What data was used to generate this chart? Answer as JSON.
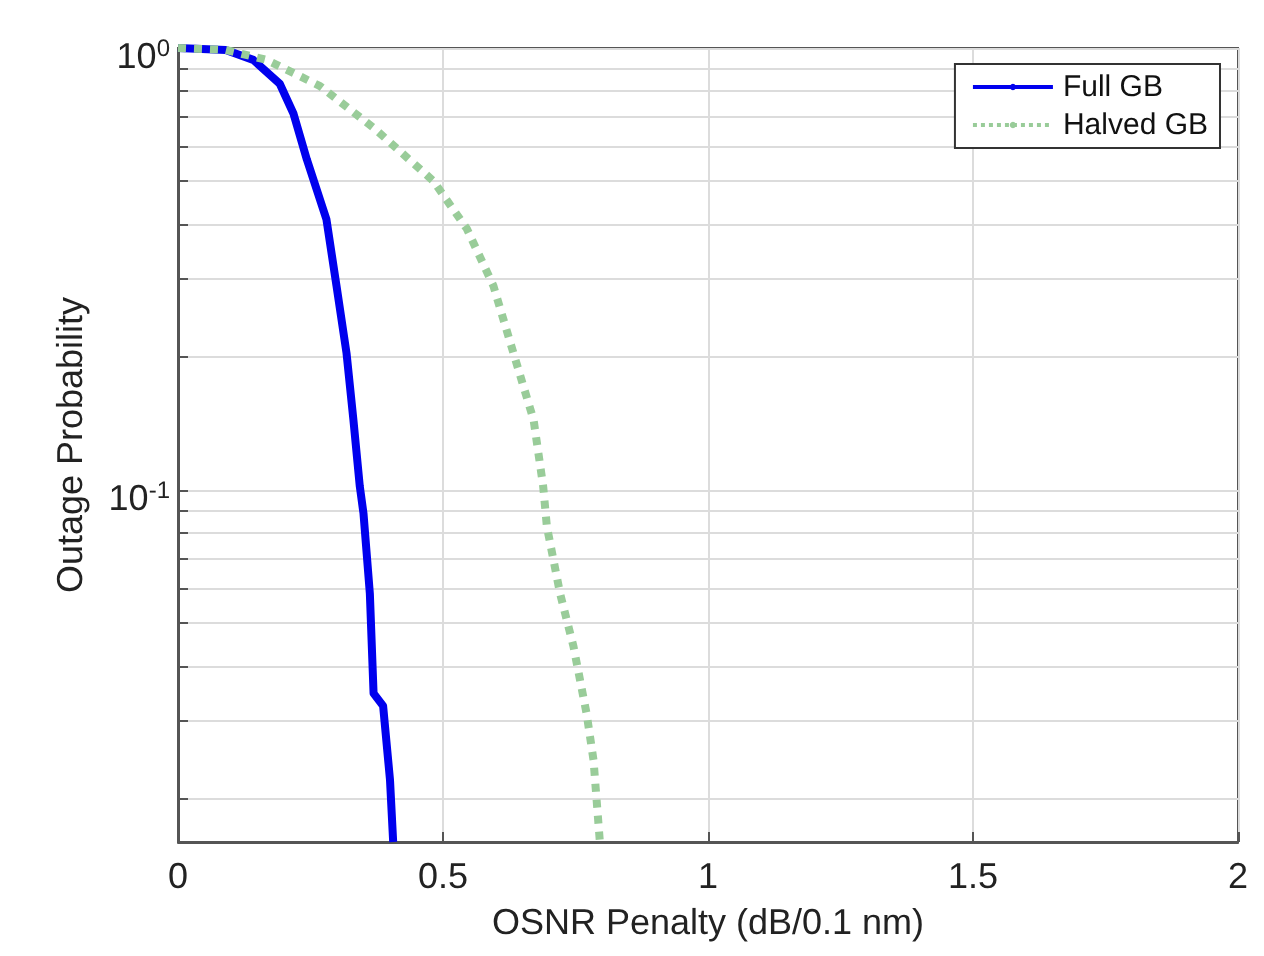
{
  "chart_data": {
    "type": "line",
    "xlabel": "OSNR Penalty (dB/0.1 nm)",
    "ylabel": "Outage Probability",
    "xlim": [
      0,
      2
    ],
    "xticks": [
      0,
      0.5,
      1,
      1.5,
      2
    ],
    "ylim": [
      0.016,
      1
    ],
    "log": true,
    "yticks": [
      {
        "value": 0.02,
        "label": null
      },
      {
        "value": 0.03,
        "label": null
      },
      {
        "value": 0.04,
        "label": null
      },
      {
        "value": 0.05,
        "label": null
      },
      {
        "value": 0.06,
        "label": null
      },
      {
        "value": 0.07,
        "label": null
      },
      {
        "value": 0.08,
        "label": null
      },
      {
        "value": 0.09,
        "label": null
      },
      {
        "value": 0.1,
        "label": "10$^{-1}$"
      },
      {
        "value": 0.2,
        "label": null
      },
      {
        "value": 0.3,
        "label": null
      },
      {
        "value": 0.4,
        "label": null
      },
      {
        "value": 0.5,
        "label": null
      },
      {
        "value": 0.6,
        "label": null
      },
      {
        "value": 0.7,
        "label": null
      },
      {
        "value": 0.8,
        "label": null
      },
      {
        "value": 0.9,
        "label": null
      },
      {
        "value": 1,
        "label": "10$^{0}$"
      }
    ],
    "grid": true,
    "legend": "top right",
    "marker": "none",
    "series": [
      {
        "name": "Full GB",
        "color": "#0000ee",
        "line_style": "solid",
        "x": [
          0,
          0.09,
          0.142,
          0.192,
          0.218,
          0.243,
          0.28,
          0.299,
          0.318,
          0.331,
          0.343,
          0.35,
          0.362,
          0.369,
          0.387,
          0.4,
          0.406
        ],
        "values": [
          1,
          0.99,
          0.94,
          0.83,
          0.71,
          0.56,
          0.41,
          0.29,
          0.204,
          0.144,
          0.102,
          0.0885,
          0.0583,
          0.0347,
          0.0325,
          0.0221,
          0.016
        ]
      },
      {
        "name": "Halved GB",
        "color": "#99cc99",
        "line_style": "dotted",
        "x": [
          0,
          0.09,
          0.167,
          0.268,
          0.369,
          0.482,
          0.545,
          0.595,
          0.633,
          0.671,
          0.689,
          0.696,
          0.721,
          0.746,
          0.771,
          0.784,
          0.796
        ],
        "values": [
          1,
          0.99,
          0.94,
          0.82,
          0.66,
          0.5,
          0.39,
          0.29,
          0.204,
          0.144,
          0.102,
          0.0827,
          0.0583,
          0.0444,
          0.0312,
          0.0245,
          0.016
        ]
      }
    ]
  }
}
